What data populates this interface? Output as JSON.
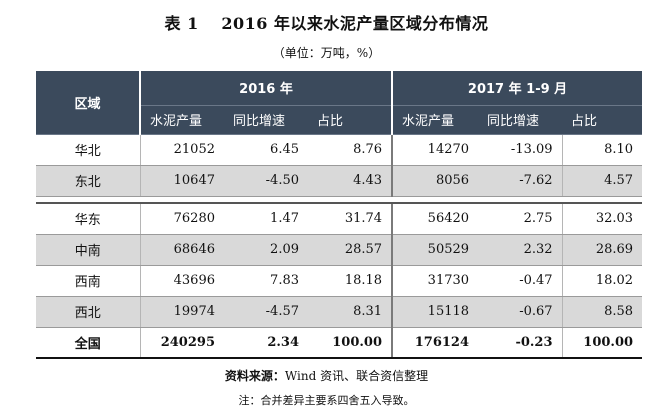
{
  "title": "表 1　 2016 年以来水泥产量区域分布情况",
  "unit": "（单位：万吨，%）",
  "header": {
    "region": "区域",
    "period_2016": "2016 年",
    "period_2017": "2017 年 1-9 月",
    "columns": [
      "水泥产量",
      "同比增速",
      "占比",
      "水泥产量",
      "同比增速",
      "占比"
    ]
  },
  "rows_north": [
    {
      "region": "华北",
      "p16": "21052",
      "g16": "6.45",
      "s16": "8.76",
      "p17": "14270",
      "g17": "-13.09",
      "s17": "8.10"
    },
    {
      "region": "东北",
      "p16": "10647",
      "g16": "-4.50",
      "s16": "4.43",
      "p17": "8056",
      "g17": "-7.62",
      "s17": "4.57"
    }
  ],
  "rows_south": [
    {
      "region": "华东",
      "p16": "76280",
      "g16": "1.47",
      "s16": "31.74",
      "p17": "56420",
      "g17": "2.75",
      "s17": "32.03"
    },
    {
      "region": "中南",
      "p16": "68646",
      "g16": "2.09",
      "s16": "28.57",
      "p17": "50529",
      "g17": "2.32",
      "s17": "28.69"
    },
    {
      "region": "西南",
      "p16": "43696",
      "g16": "7.83",
      "s16": "18.18",
      "p17": "31730",
      "g17": "-0.47",
      "s17": "18.02"
    },
    {
      "region": "西北",
      "p16": "19974",
      "g16": "-4.57",
      "s16": "8.31",
      "p17": "15118",
      "g17": "-0.67",
      "s17": "8.58"
    }
  ],
  "total": {
    "region": "全国",
    "p16": "240295",
    "g16": "2.34",
    "s16": "100.00",
    "p17": "176124",
    "g17": "-0.23",
    "s17": "100.00"
  },
  "source_label": "资料来源：",
  "source_text": "Wind 资讯、联合资信整理",
  "note": "注：合并差异主要系四舍五入导致。"
}
